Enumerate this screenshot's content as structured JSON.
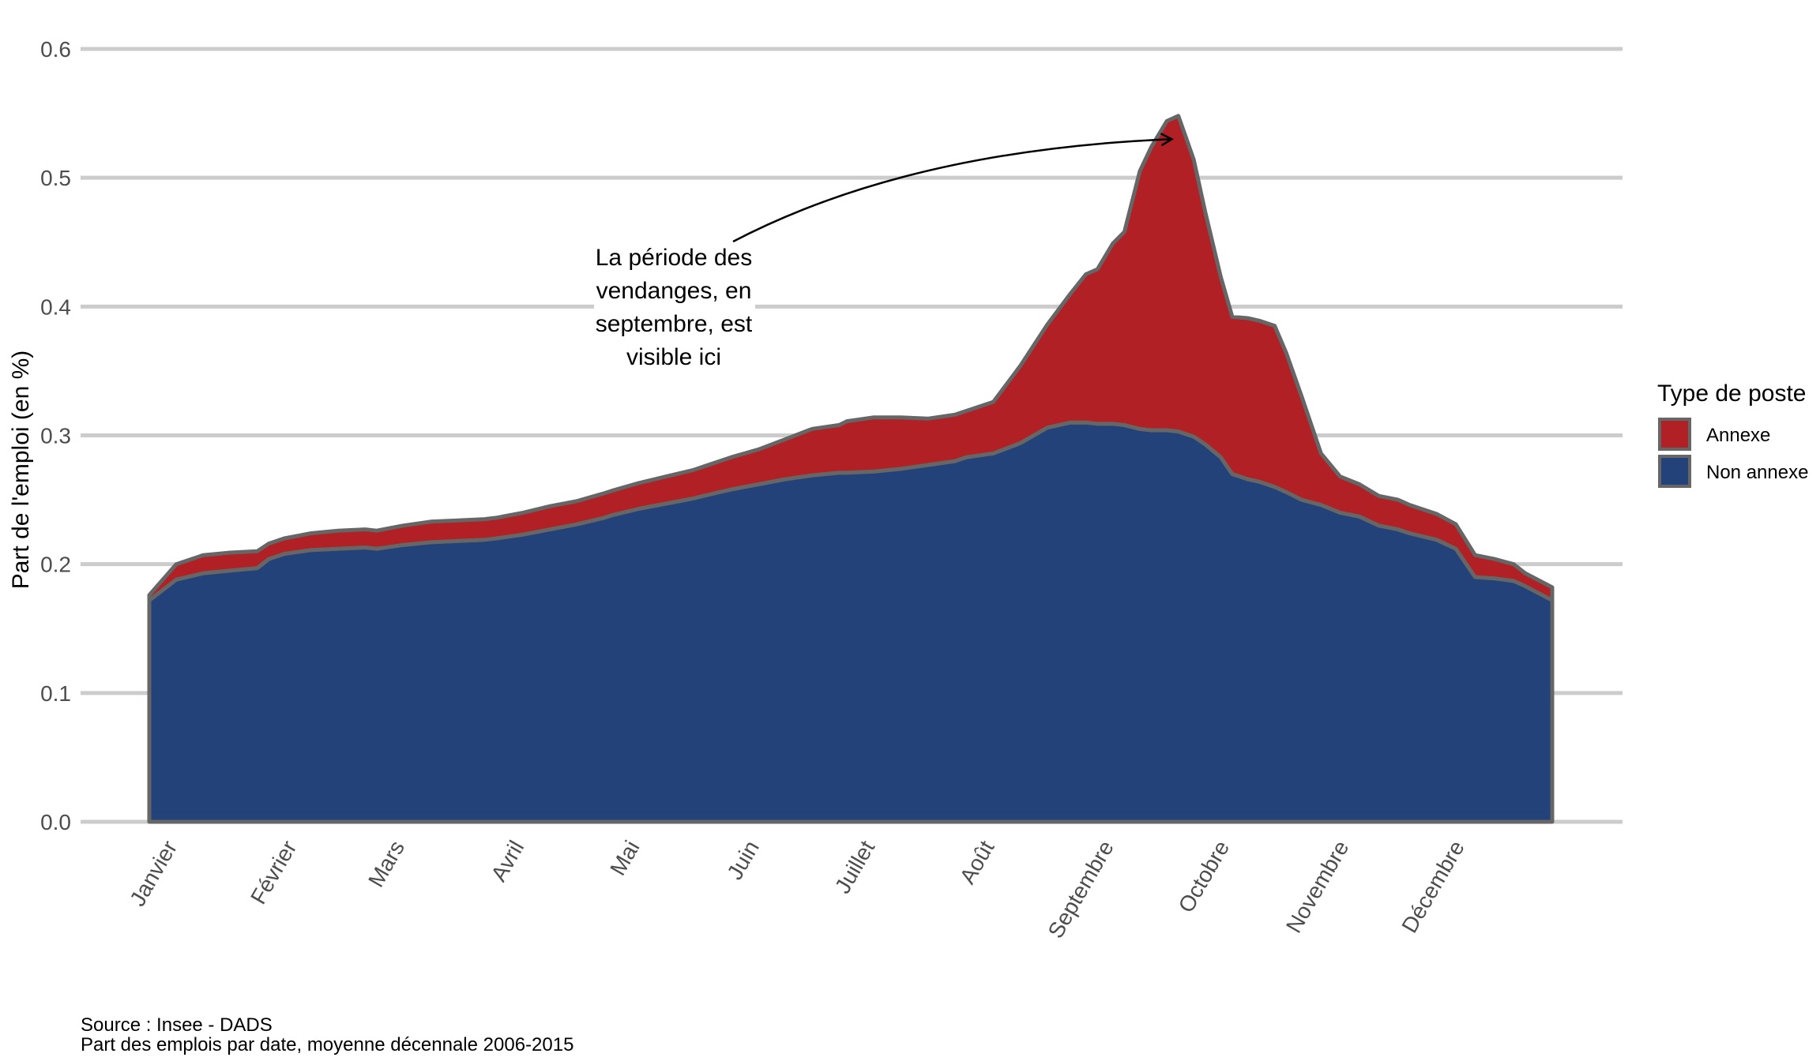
{
  "chart_data": {
    "type": "area",
    "stacked": true,
    "ylabel": "Part de l'emploi (en %)",
    "xlabel": "",
    "ylim": [
      0,
      0.6
    ],
    "yticks": [
      "0.0",
      "0.1",
      "0.2",
      "0.3",
      "0.4",
      "0.5",
      "0.6"
    ],
    "grid": "horizontal",
    "legend_position": "right",
    "legend_title": "Type de poste",
    "months": [
      "Janvier",
      "Février",
      "Mars",
      "Avril",
      "Mai",
      "Juin",
      "Juillet",
      "Août",
      "Septembre",
      "Octobre",
      "Novembre",
      "Décembre"
    ],
    "x": [
      1,
      8,
      15,
      22,
      29,
      32,
      36,
      43,
      50,
      57,
      60,
      67,
      74,
      81,
      88,
      91,
      98,
      105,
      112,
      119,
      121,
      128,
      135,
      142,
      149,
      152,
      159,
      166,
      173,
      180,
      182,
      189,
      196,
      203,
      210,
      213,
      220,
      227,
      234,
      240,
      244,
      247,
      251,
      254,
      258,
      261,
      265,
      268,
      270,
      272,
      275,
      279,
      282,
      286,
      289,
      293,
      296,
      300,
      305,
      310,
      315,
      320,
      325,
      328,
      335,
      340,
      345,
      350,
      355,
      358,
      365
    ],
    "series": [
      {
        "name": "Non annexe",
        "color": "#23427a",
        "values": [
          0.172,
          0.188,
          0.193,
          0.195,
          0.197,
          0.204,
          0.208,
          0.211,
          0.212,
          0.213,
          0.212,
          0.215,
          0.217,
          0.218,
          0.219,
          0.22,
          0.223,
          0.227,
          0.231,
          0.236,
          0.238,
          0.243,
          0.247,
          0.251,
          0.256,
          0.258,
          0.262,
          0.266,
          0.269,
          0.271,
          0.271,
          0.272,
          0.274,
          0.277,
          0.28,
          0.283,
          0.286,
          0.294,
          0.306,
          0.31,
          0.31,
          0.309,
          0.309,
          0.308,
          0.305,
          0.304,
          0.304,
          0.303,
          0.301,
          0.299,
          0.293,
          0.283,
          0.27,
          0.266,
          0.264,
          0.26,
          0.256,
          0.25,
          0.246,
          0.24,
          0.237,
          0.23,
          0.227,
          0.224,
          0.219,
          0.212,
          0.19,
          0.189,
          0.187,
          0.183,
          0.172
        ]
      },
      {
        "name": "Annexe",
        "color": "#b02024",
        "values": [
          0.004,
          0.012,
          0.014,
          0.014,
          0.013,
          0.012,
          0.012,
          0.013,
          0.014,
          0.014,
          0.014,
          0.015,
          0.016,
          0.016,
          0.016,
          0.016,
          0.017,
          0.018,
          0.018,
          0.019,
          0.019,
          0.02,
          0.021,
          0.022,
          0.024,
          0.025,
          0.027,
          0.031,
          0.036,
          0.037,
          0.04,
          0.042,
          0.04,
          0.036,
          0.036,
          0.036,
          0.04,
          0.06,
          0.08,
          0.1,
          0.115,
          0.12,
          0.14,
          0.15,
          0.2,
          0.22,
          0.24,
          0.245,
          0.23,
          0.215,
          0.18,
          0.14,
          0.122,
          0.125,
          0.125,
          0.125,
          0.108,
          0.08,
          0.04,
          0.028,
          0.025,
          0.023,
          0.023,
          0.022,
          0.02,
          0.019,
          0.017,
          0.015,
          0.013,
          0.01,
          0.01
        ]
      }
    ],
    "annotation": {
      "lines": [
        "La période des",
        "vendanges, en",
        "septembre, est",
        "visible ici"
      ],
      "arrow_target": [
        270,
        0.53
      ]
    }
  },
  "caption": {
    "source": "Source : Insee - DADS",
    "note": "Part des emplois par date, moyenne décennale 2006-2015"
  }
}
